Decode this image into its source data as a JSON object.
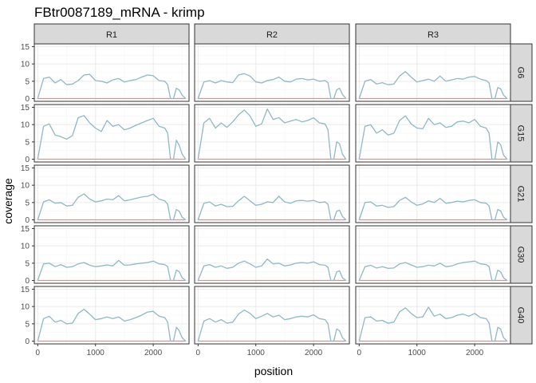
{
  "chart_data": {
    "type": "line",
    "title": "FBtr0087189_mRNA - krimp",
    "xlabel": "position",
    "ylabel": "coverage",
    "xlim": [
      -60,
      2620
    ],
    "ylim": [
      -0.8,
      15.8
    ],
    "x_ticks": [
      0,
      1000,
      2000
    ],
    "x_tick_labels": [
      "0",
      "1000",
      "2000"
    ],
    "y_ticks": [
      0,
      5,
      10,
      15
    ],
    "y_tick_labels": [
      "0",
      "5",
      "10",
      "15"
    ],
    "columns": [
      "R1",
      "R2",
      "R3"
    ],
    "rows": [
      "G6",
      "G15",
      "G21",
      "G30",
      "G40"
    ],
    "grid": true,
    "legend": "none",
    "colors": {
      "coverage_line": "#8FB8C8",
      "baseline_line": "#F08A7E",
      "strip_bg": "#D9D9D9",
      "panel_border": "#333333",
      "grid_major": "#EBEBEB",
      "grid_minor": "#F5F5F5"
    },
    "x": [
      0,
      100,
      200,
      300,
      400,
      500,
      600,
      700,
      800,
      900,
      1000,
      1100,
      1200,
      1300,
      1400,
      1500,
      1600,
      1700,
      1800,
      1900,
      2000,
      2100,
      2200,
      2250,
      2300,
      2350,
      2400,
      2450,
      2500,
      2560
    ],
    "panels": [
      {
        "row": "G6",
        "col": "R1",
        "values": [
          0,
          5.8,
          6.2,
          4.5,
          5.5,
          4.0,
          4.2,
          5.2,
          6.8,
          7.0,
          5.2,
          5.0,
          4.5,
          5.4,
          5.8,
          4.8,
          5.2,
          5.5,
          6.2,
          6.8,
          6.6,
          5.2,
          5.0,
          4.0,
          0,
          0,
          3.0,
          2.5,
          1.0,
          0
        ],
        "baseline": [
          0,
          0
        ]
      },
      {
        "row": "G6",
        "col": "R2",
        "values": [
          0,
          4.8,
          5.2,
          4.5,
          5.2,
          4.8,
          4.6,
          6.8,
          7.2,
          6.5,
          4.8,
          4.5,
          5.2,
          5.5,
          6.2,
          5.0,
          4.8,
          5.6,
          5.8,
          5.4,
          5.6,
          5.0,
          5.2,
          4.6,
          0,
          0,
          2.5,
          3.0,
          1.2,
          0
        ],
        "baseline": [
          0,
          0
        ]
      },
      {
        "row": "G6",
        "col": "R3",
        "values": [
          0,
          5.0,
          5.5,
          4.2,
          4.6,
          4.0,
          4.2,
          6.5,
          7.8,
          6.2,
          4.8,
          5.2,
          5.6,
          5.0,
          6.5,
          5.0,
          5.4,
          5.8,
          5.6,
          6.2,
          6.4,
          5.6,
          5.2,
          4.5,
          0,
          0,
          3.2,
          2.8,
          1.0,
          0
        ],
        "baseline": [
          0,
          0
        ]
      },
      {
        "row": "G15",
        "col": "R1",
        "values": [
          0,
          9.5,
          10.2,
          7.0,
          6.5,
          5.8,
          6.8,
          12.0,
          12.6,
          10.5,
          9.0,
          8.0,
          11.2,
          9.5,
          10.0,
          8.5,
          9.0,
          9.8,
          10.5,
          11.2,
          11.8,
          9.5,
          9.0,
          7.5,
          0,
          0,
          5.5,
          4.0,
          1.5,
          0
        ],
        "baseline": [
          0,
          0
        ]
      },
      {
        "row": "G15",
        "col": "R2",
        "values": [
          0,
          10.5,
          11.8,
          9.0,
          10.5,
          9.2,
          10.8,
          12.8,
          14.2,
          12.5,
          9.5,
          10.2,
          14.5,
          11.5,
          12.0,
          10.5,
          11.0,
          11.5,
          10.8,
          11.2,
          12.0,
          10.5,
          10.2,
          8.5,
          0,
          0,
          5.0,
          4.5,
          1.5,
          0
        ],
        "baseline": [
          0,
          0
        ]
      },
      {
        "row": "G15",
        "col": "R3",
        "values": [
          0,
          9.5,
          10.0,
          7.5,
          8.5,
          7.0,
          7.5,
          11.2,
          12.5,
          10.2,
          9.0,
          8.8,
          11.8,
          10.0,
          10.5,
          9.2,
          9.5,
          10.8,
          11.0,
          10.5,
          11.5,
          9.5,
          9.0,
          7.5,
          0,
          0,
          5.0,
          4.2,
          1.2,
          0
        ],
        "baseline": [
          0,
          0
        ]
      },
      {
        "row": "G21",
        "col": "R1",
        "values": [
          0,
          5.2,
          5.8,
          4.8,
          5.0,
          4.0,
          4.2,
          6.5,
          7.5,
          6.0,
          5.2,
          5.5,
          6.0,
          5.8,
          7.0,
          5.5,
          5.8,
          6.2,
          6.6,
          6.8,
          7.4,
          6.0,
          5.5,
          4.5,
          0,
          0,
          3.0,
          2.5,
          0.8,
          0
        ],
        "baseline": [
          0,
          0
        ]
      },
      {
        "row": "G21",
        "col": "R2",
        "values": [
          0,
          4.8,
          5.2,
          4.0,
          4.5,
          3.8,
          3.9,
          5.5,
          6.8,
          5.5,
          4.2,
          4.5,
          5.2,
          5.0,
          6.8,
          5.2,
          4.8,
          5.5,
          5.6,
          5.4,
          5.6,
          5.0,
          5.2,
          4.5,
          0,
          0,
          2.5,
          2.8,
          1.0,
          0
        ],
        "baseline": [
          0,
          0
        ]
      },
      {
        "row": "G21",
        "col": "R3",
        "values": [
          0,
          5.0,
          5.2,
          4.0,
          4.2,
          3.6,
          3.8,
          5.6,
          6.5,
          5.2,
          4.2,
          4.6,
          5.5,
          5.0,
          6.2,
          4.8,
          5.0,
          5.4,
          5.2,
          5.6,
          5.8,
          5.0,
          4.8,
          4.0,
          0,
          0,
          3.0,
          2.6,
          0.8,
          0
        ],
        "baseline": [
          0,
          0
        ]
      },
      {
        "row": "G30",
        "col": "R1",
        "values": [
          0,
          4.8,
          5.0,
          4.0,
          4.6,
          3.8,
          4.0,
          4.8,
          5.2,
          4.4,
          4.0,
          4.2,
          4.5,
          4.2,
          5.8,
          4.4,
          4.5,
          4.8,
          5.0,
          5.2,
          5.6,
          4.8,
          4.6,
          4.0,
          0,
          0,
          3.0,
          2.6,
          0.8,
          0
        ],
        "baseline": [
          0,
          0
        ]
      },
      {
        "row": "G30",
        "col": "R2",
        "values": [
          0,
          4.2,
          4.6,
          3.8,
          4.2,
          3.5,
          3.8,
          5.0,
          5.6,
          4.8,
          3.8,
          4.2,
          6.2,
          4.8,
          5.0,
          4.2,
          4.5,
          5.0,
          5.2,
          5.0,
          5.4,
          4.6,
          4.4,
          3.8,
          0,
          0,
          2.5,
          2.8,
          0.8,
          0
        ],
        "baseline": [
          0,
          0
        ]
      },
      {
        "row": "G30",
        "col": "R3",
        "values": [
          0,
          4.0,
          4.4,
          3.6,
          4.0,
          3.5,
          3.6,
          4.8,
          5.2,
          4.5,
          3.8,
          4.0,
          4.4,
          4.2,
          5.0,
          4.0,
          4.2,
          4.8,
          5.2,
          5.4,
          5.6,
          4.8,
          4.6,
          4.0,
          0,
          0,
          3.0,
          2.5,
          0.8,
          0
        ],
        "baseline": [
          0,
          0
        ]
      },
      {
        "row": "G40",
        "col": "R1",
        "values": [
          0,
          6.5,
          7.2,
          5.5,
          6.0,
          5.0,
          5.2,
          8.0,
          9.2,
          7.8,
          6.2,
          6.5,
          7.0,
          6.5,
          7.0,
          5.8,
          6.2,
          6.8,
          7.5,
          8.4,
          8.6,
          7.2,
          6.8,
          5.5,
          0,
          0,
          4.0,
          3.0,
          1.0,
          0
        ],
        "baseline": [
          0,
          0
        ]
      },
      {
        "row": "G40",
        "col": "R2",
        "values": [
          0,
          5.8,
          6.5,
          5.5,
          6.2,
          5.2,
          5.5,
          7.8,
          9.0,
          8.0,
          6.5,
          7.2,
          8.0,
          7.0,
          7.5,
          6.2,
          6.5,
          7.0,
          7.2,
          7.0,
          7.6,
          6.5,
          6.2,
          5.0,
          0,
          0,
          3.5,
          3.0,
          1.0,
          0
        ],
        "baseline": [
          0,
          0
        ]
      },
      {
        "row": "G40",
        "col": "R3",
        "values": [
          0,
          6.8,
          7.0,
          5.8,
          6.0,
          5.2,
          5.5,
          8.5,
          9.6,
          8.0,
          6.8,
          7.0,
          9.8,
          7.2,
          7.8,
          6.5,
          6.8,
          7.5,
          7.8,
          7.2,
          8.0,
          6.8,
          6.5,
          5.2,
          0,
          0,
          4.0,
          3.5,
          1.0,
          0
        ],
        "baseline": [
          0,
          0
        ]
      }
    ]
  }
}
